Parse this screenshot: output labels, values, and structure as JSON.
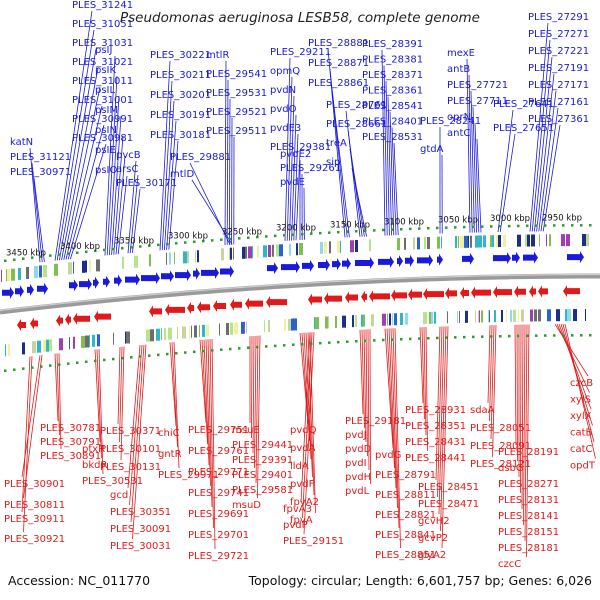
{
  "title": "Pseudomonas aeruginosa LESB58, complete genome",
  "footer": {
    "accession": "Accession: NC_011770",
    "summary": "Topology: circular; Length: 6,601,757 bp; Genes: 6,026"
  },
  "ticks": [
    "3450 kbp",
    "3400 kbp",
    "3350 kbp",
    "3300 kbp",
    "3250 kbp",
    "3200 kbp",
    "3150 kbp",
    "3100 kbp",
    "3050 kbp",
    "3000 kbp",
    "2950 kbp"
  ],
  "top_labels": [
    "PLES_31241",
    "PLES_31051",
    "PLES_31031",
    "PLES_31021",
    "PLES_31011",
    "PLES_31001",
    "PLES_30991",
    "PLES_30981",
    "katN",
    "PLES_31121",
    "PLES_30971",
    "psIJ",
    "psIK",
    "psIL",
    "psIM",
    "psIN",
    "psIE",
    "psIO",
    "pvcB",
    "arsC",
    "PLES_30171",
    "PLES_30221",
    "PLES_30211",
    "PLES_30201",
    "PLES_30191",
    "PLES_30181",
    "mtlR",
    "PLES_29541",
    "PLES_29531",
    "PLES_29521",
    "PLES_29511",
    "PLES_29881",
    "mtlD",
    "PLES_29211",
    "opmQ",
    "pvdN",
    "pvdO",
    "pvdE3",
    "PLES_29381",
    "pvdE2",
    "PLES_29261",
    "pvdE",
    "PLES_28881",
    "PLES_28871",
    "PLES_28861",
    "PLES_28761",
    "PLES_28661",
    "treA",
    "sip",
    "PLES_28391",
    "PLES_28381",
    "PLES_28371",
    "PLES_28361",
    "PLES_28541",
    "PLES_28401",
    "PLES_28531",
    "PLES_28241",
    "gtdA",
    "mexE",
    "antB",
    "PLES_27721",
    "PLES_27711",
    "oprN",
    "antC",
    "PLES_27641",
    "PLES_27651",
    "PLES_27291",
    "PLES_27271",
    "PLES_27221",
    "PLES_27191",
    "PLES_27171",
    "PLES_27161",
    "PLES_27361"
  ],
  "bottom_labels": [
    "PLES_30781",
    "PLES_30791",
    "PLES_30891",
    "PLES_30901",
    "PLES_30811",
    "PLES_30911",
    "PLES_30921",
    "ptxR",
    "bkdR",
    "PLES_30531",
    "PLES_30371",
    "PLES_30101",
    "PLES_30131",
    "gcd",
    "PLES_30351",
    "PLES_30091",
    "PLES_30031",
    "chiC",
    "gntR",
    "PLES_29971",
    "PLES_29751",
    "PLES_29761",
    "PLES_29771",
    "PLES_29741",
    "PLES_29691",
    "PLES_29701",
    "PLES_29721",
    "msuE",
    "PLES_29441",
    "PLES_29391",
    "PLES_29401",
    "PLES_29581",
    "msuD",
    "pvdQ",
    "pvdA",
    "lldA",
    "pvdF",
    "fpvA2",
    "fpvA",
    "fpvA3",
    "pvdP",
    "PLES_29151",
    "PLES_29181",
    "pvdJ",
    "pvdD",
    "pvdI",
    "pvdH",
    "pvdL",
    "pvdG",
    "PLES_28791",
    "PLES_28811",
    "PLES_28821",
    "PLES_28841",
    "PLES_28851",
    "PLES_28931",
    "PLES_28351",
    "PLES_28431",
    "PLES_28441",
    "PLES_28451",
    "PLES_28471",
    "gcvH2",
    "gcvP2",
    "glyA2",
    "sdaA",
    "PLES_28051",
    "PLES_28091",
    "PLES_28121",
    "PLES_28191",
    "dsbG",
    "PLES_28271",
    "PLES_28131",
    "PLES_28141",
    "PLES_28151",
    "PLES_28181",
    "czcC",
    "czcB",
    "xylS",
    "xylX",
    "catB",
    "catC",
    "opdT"
  ],
  "colors": {
    "forward_strand": "#e01a1a",
    "reverse_strand": "#1a1adb",
    "backbone": "#9a9a9a",
    "tick_dots": "#2e9a2e",
    "cds_palette": [
      "#1b2f86",
      "#2a64c8",
      "#2fb7c8",
      "#8fd9f0",
      "#7fbf50",
      "#b7e38a",
      "#c7d59a",
      "#6d6d6d",
      "#a040b0",
      "#f0f0a0"
    ]
  }
}
